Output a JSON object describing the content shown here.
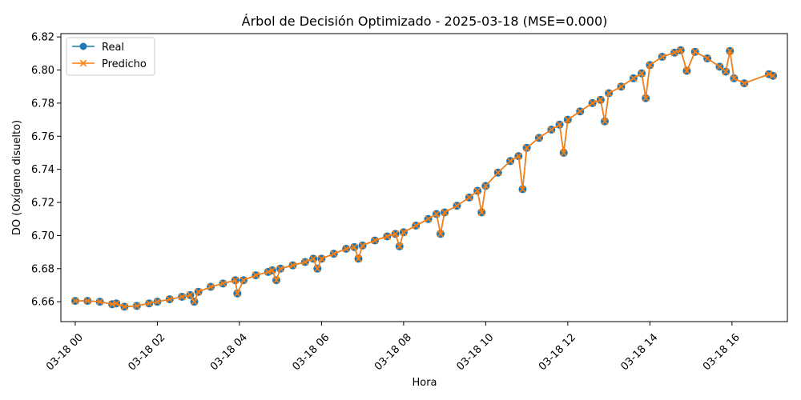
{
  "chart_data": {
    "type": "line",
    "title": "Árbol de Decisión Optimizado - 2025-03-18 (MSE=0.000)",
    "xlabel": "Hora",
    "ylabel": "DO (Oxígeno disuelto)",
    "xlim": [
      -0.35,
      17.35
    ],
    "ylim": [
      6.648,
      6.822
    ],
    "x_unit": "hours since 03-18 00:00",
    "x_ticks": [
      {
        "value": 0,
        "label": "03-18 00"
      },
      {
        "value": 2,
        "label": "03-18 02"
      },
      {
        "value": 4,
        "label": "03-18 04"
      },
      {
        "value": 6,
        "label": "03-18 06"
      },
      {
        "value": 8,
        "label": "03-18 08"
      },
      {
        "value": 10,
        "label": "03-18 10"
      },
      {
        "value": 12,
        "label": "03-18 12"
      },
      {
        "value": 14,
        "label": "03-18 14"
      },
      {
        "value": 16,
        "label": "03-18 16"
      }
    ],
    "y_ticks": [
      6.66,
      6.68,
      6.7,
      6.72,
      6.74,
      6.76,
      6.78,
      6.8,
      6.82
    ],
    "grid": false,
    "legend": "top-left",
    "series": [
      {
        "name": "Real",
        "color": "#1f77b4",
        "marker": "circle"
      },
      {
        "name": "Predicho",
        "color": "#ff7f0e",
        "marker": "x"
      }
    ],
    "points": [
      [
        0.0,
        6.6605
      ],
      [
        0.3,
        6.6605
      ],
      [
        0.6,
        6.66
      ],
      [
        0.9,
        6.6585
      ],
      [
        1.0,
        6.659
      ],
      [
        1.2,
        6.657
      ],
      [
        1.5,
        6.6575
      ],
      [
        1.8,
        6.659
      ],
      [
        2.0,
        6.66
      ],
      [
        2.3,
        6.6615
      ],
      [
        2.6,
        6.663
      ],
      [
        2.8,
        6.664
      ],
      [
        2.9,
        6.66
      ],
      [
        3.0,
        6.666
      ],
      [
        3.3,
        6.669
      ],
      [
        3.6,
        6.671
      ],
      [
        3.9,
        6.673
      ],
      [
        3.95,
        6.665
      ],
      [
        4.1,
        6.673
      ],
      [
        4.4,
        6.676
      ],
      [
        4.7,
        6.678
      ],
      [
        4.8,
        6.679
      ],
      [
        4.9,
        6.673
      ],
      [
        5.0,
        6.68
      ],
      [
        5.3,
        6.682
      ],
      [
        5.6,
        6.684
      ],
      [
        5.8,
        6.686
      ],
      [
        5.9,
        6.68
      ],
      [
        6.0,
        6.686
      ],
      [
        6.3,
        6.689
      ],
      [
        6.6,
        6.692
      ],
      [
        6.8,
        6.693
      ],
      [
        6.9,
        6.686
      ],
      [
        7.0,
        6.694
      ],
      [
        7.3,
        6.697
      ],
      [
        7.6,
        6.6995
      ],
      [
        7.8,
        6.701
      ],
      [
        7.9,
        6.6935
      ],
      [
        8.0,
        6.702
      ],
      [
        8.3,
        6.706
      ],
      [
        8.6,
        6.71
      ],
      [
        8.8,
        6.713
      ],
      [
        8.9,
        6.701
      ],
      [
        9.0,
        6.714
      ],
      [
        9.3,
        6.718
      ],
      [
        9.6,
        6.723
      ],
      [
        9.8,
        6.727
      ],
      [
        9.9,
        6.714
      ],
      [
        10.0,
        6.73
      ],
      [
        10.3,
        6.738
      ],
      [
        10.6,
        6.745
      ],
      [
        10.8,
        6.748
      ],
      [
        10.9,
        6.728
      ],
      [
        11.0,
        6.753
      ],
      [
        11.3,
        6.759
      ],
      [
        11.6,
        6.764
      ],
      [
        11.8,
        6.767
      ],
      [
        11.9,
        6.75
      ],
      [
        12.0,
        6.77
      ],
      [
        12.3,
        6.775
      ],
      [
        12.6,
        6.78
      ],
      [
        12.8,
        6.782
      ],
      [
        12.9,
        6.769
      ],
      [
        13.0,
        6.786
      ],
      [
        13.3,
        6.79
      ],
      [
        13.6,
        6.795
      ],
      [
        13.8,
        6.798
      ],
      [
        13.9,
        6.783
      ],
      [
        14.0,
        6.803
      ],
      [
        14.3,
        6.808
      ],
      [
        14.6,
        6.8105
      ],
      [
        14.75,
        6.812
      ],
      [
        14.9,
        6.7995
      ],
      [
        15.1,
        6.811
      ],
      [
        15.4,
        6.807
      ],
      [
        15.7,
        6.802
      ],
      [
        15.85,
        6.799
      ],
      [
        15.95,
        6.8115
      ],
      [
        16.05,
        6.795
      ],
      [
        16.3,
        6.792
      ],
      [
        16.9,
        6.7975
      ],
      [
        17.0,
        6.7965
      ]
    ]
  }
}
